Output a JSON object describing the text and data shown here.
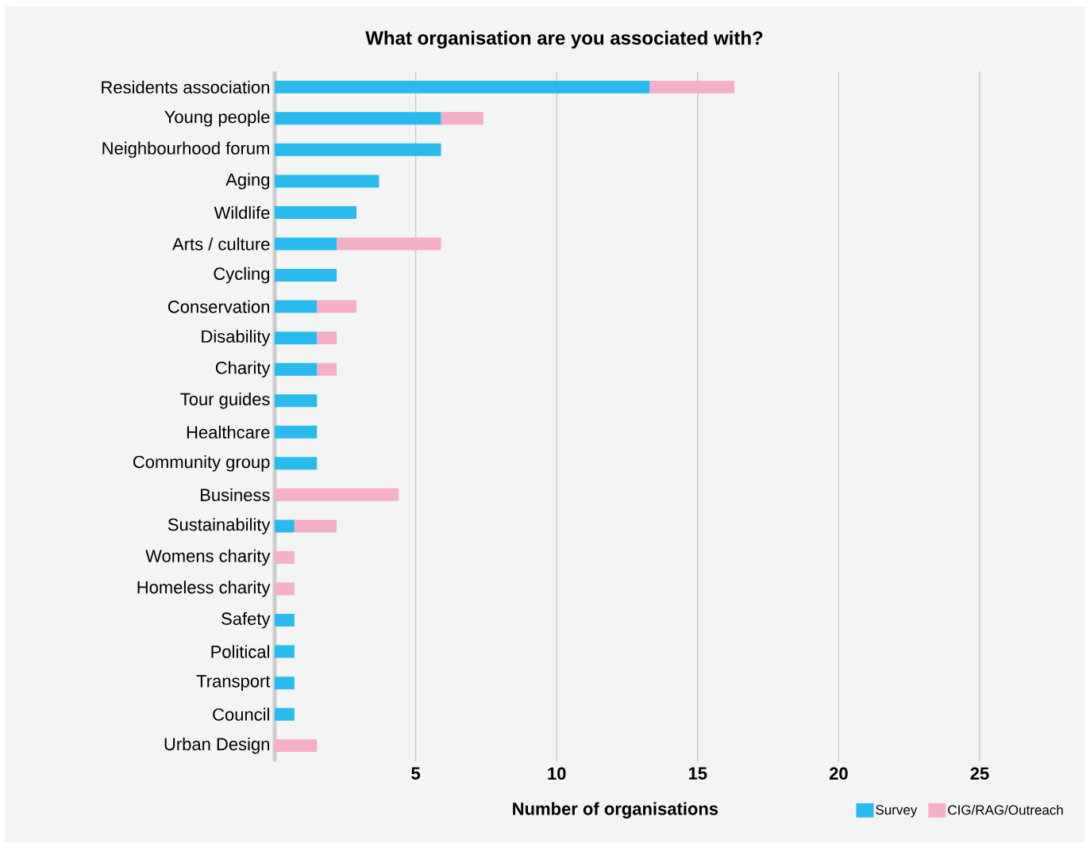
{
  "chart_data": {
    "type": "bar",
    "orientation": "horizontal",
    "stacked": true,
    "title": "What organisation are you associated with?",
    "xlabel": "Number of organisations",
    "categories": [
      "Residents association",
      "Young people",
      "Neighbourhood forum",
      "Aging",
      "Wildlife",
      "Arts / culture",
      "Cycling",
      "Conservation",
      "Disability",
      "Charity",
      "Tour guides",
      "Healthcare",
      "Community group",
      "Business",
      "Sustainability",
      "Womens charity",
      "Homeless charity",
      "Safety",
      "Political",
      "Transport",
      "Council",
      "Urban Design"
    ],
    "series": [
      {
        "name": "Survey",
        "color": "#29bbed",
        "values": [
          13.3,
          5.9,
          5.9,
          3.7,
          2.9,
          2.2,
          2.2,
          1.5,
          1.5,
          1.5,
          1.5,
          1.5,
          1.5,
          0,
          0.7,
          0,
          0,
          0.7,
          0.7,
          0.7,
          0.7,
          0
        ]
      },
      {
        "name": "CIG/RAG/Outreach",
        "color": "#f5afc6",
        "values": [
          3.0,
          1.5,
          0,
          0,
          0,
          3.7,
          0,
          1.4,
          0.7,
          0.7,
          0,
          0,
          0,
          4.4,
          1.5,
          0.7,
          0.7,
          0,
          0,
          0,
          0,
          1.5
        ]
      }
    ],
    "xlim": [
      0,
      25
    ],
    "xticks": [
      5,
      10,
      15,
      20,
      25
    ],
    "grid": "x",
    "legend": "bottom right"
  }
}
